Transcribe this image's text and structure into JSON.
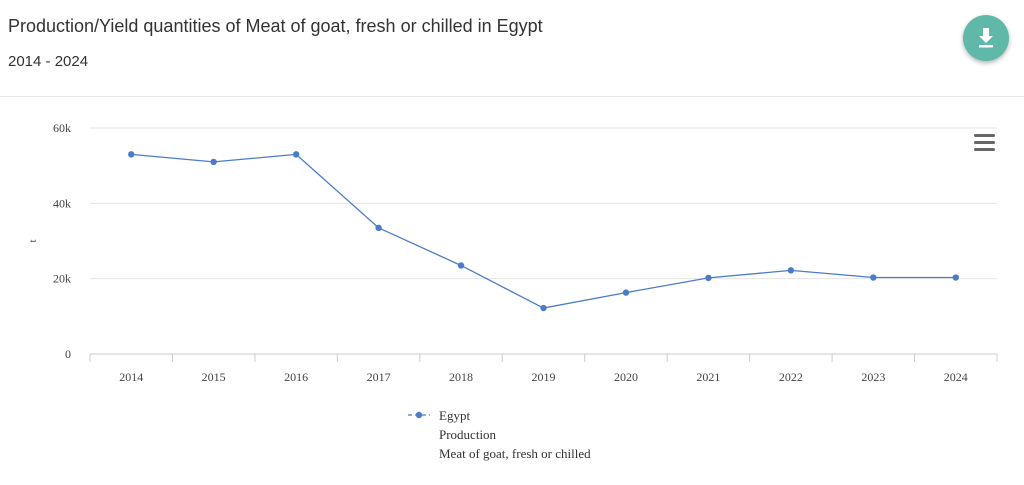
{
  "header": {
    "title": "Production/Yield quantities of Meat of goat, fresh or chilled in Egypt",
    "subtitle": "2014 - 2024",
    "download_icon": "download-icon"
  },
  "menu_icon": "hamburger-menu-icon",
  "chart_data": {
    "type": "line",
    "categories": [
      "2014",
      "2015",
      "2016",
      "2017",
      "2018",
      "2019",
      "2020",
      "2021",
      "2022",
      "2023",
      "2024"
    ],
    "series": [
      {
        "name": "Egypt",
        "values": [
          53000,
          51000,
          53000,
          33500,
          23500,
          12200,
          16300,
          20200,
          22200,
          20300,
          20300
        ],
        "color": "#4a7cc9"
      }
    ],
    "legend_lines": [
      "Egypt",
      "Production",
      "Meat of goat, fresh or chilled"
    ],
    "legend_placement": "bottom-center",
    "ylabel": "t",
    "xlabel": "",
    "ylim": [
      0,
      60000
    ],
    "yticks": [
      0,
      20000,
      40000,
      60000
    ],
    "ytick_labels": [
      "0",
      "20k",
      "40k",
      "60k"
    ],
    "grid": true
  }
}
